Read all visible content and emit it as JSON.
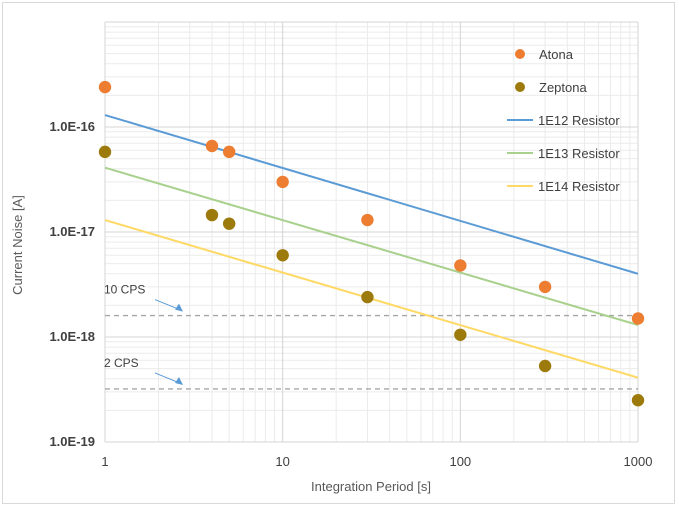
{
  "chart_data": {
    "type": "scatter",
    "title": "",
    "xlabel": "Integration Period [s]",
    "ylabel": "Current Noise [A]",
    "x_scale": "log",
    "y_scale": "log",
    "xlim": [
      1,
      1000
    ],
    "ylim": [
      1e-19,
      1e-15
    ],
    "x_ticks": [
      "1",
      "10",
      "100",
      "1000"
    ],
    "y_ticks": [
      "1.0E-19",
      "1.0E-18",
      "1.0E-17",
      "1.0E-16"
    ],
    "grid": "on (major and minor)",
    "legend_position": "top-right",
    "series": [
      {
        "name": "Atona",
        "kind": "markers",
        "color": "#ED7D31",
        "points": [
          [
            1,
            2.4e-16
          ],
          [
            4,
            6.6e-17
          ],
          [
            5,
            5.8e-17
          ],
          [
            10,
            3e-17
          ],
          [
            30,
            1.3e-17
          ],
          [
            100,
            4.8e-18
          ],
          [
            300,
            3e-18
          ],
          [
            1000,
            1.5e-18
          ]
        ]
      },
      {
        "name": "Zeptona",
        "kind": "markers",
        "color": "#9C7A0C",
        "points": [
          [
            1,
            5.8e-17
          ],
          [
            4,
            1.45e-17
          ],
          [
            5,
            1.2e-17
          ],
          [
            10,
            6e-18
          ],
          [
            30,
            2.4e-18
          ],
          [
            100,
            1.05e-18
          ],
          [
            300,
            5.3e-19
          ],
          [
            1000,
            2.5e-19
          ]
        ]
      },
      {
        "name": "1E12 Resistor",
        "kind": "line",
        "color": "#5B9BD5",
        "points": [
          [
            1,
            1.3e-16
          ],
          [
            1000,
            4e-18
          ]
        ]
      },
      {
        "name": "1E13 Resistor",
        "kind": "line",
        "color": "#A9D18E",
        "points": [
          [
            1,
            4.1e-17
          ],
          [
            1000,
            1.3e-18
          ]
        ]
      },
      {
        "name": "1E14 Resistor",
        "kind": "line",
        "color": "#FFD966",
        "points": [
          [
            1,
            1.3e-17
          ],
          [
            1000,
            4.1e-19
          ]
        ]
      }
    ],
    "reference_lines": [
      {
        "label": "10 CPS",
        "y": 1.6e-18,
        "color": "#A6A6A6",
        "style": "dashed"
      },
      {
        "label": "2 CPS",
        "y": 3.2e-19,
        "color": "#A6A6A6",
        "style": "dashed"
      }
    ],
    "annotation_arrow_color": "#5B9BD5"
  }
}
